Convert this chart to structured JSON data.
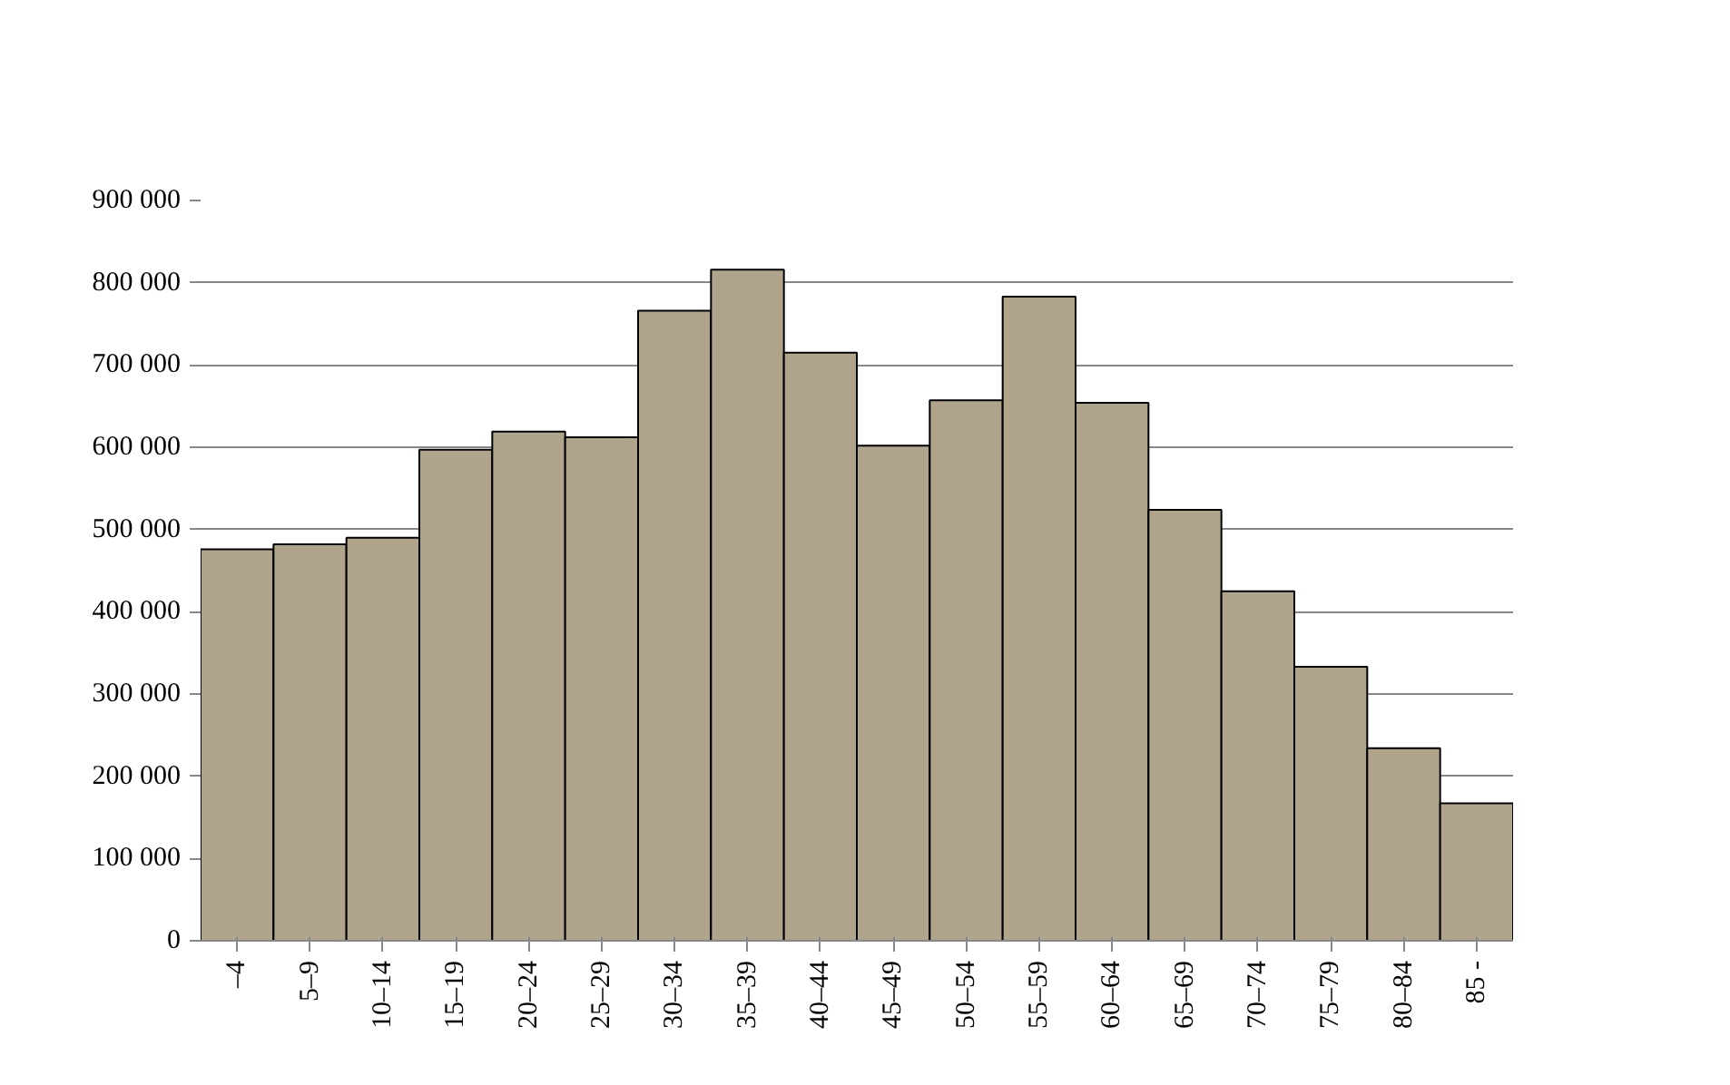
{
  "chart_data": {
    "type": "bar",
    "categories": [
      "–4",
      "5–9",
      "10–14",
      "15–19",
      "20–24",
      "25–29",
      "30–34",
      "35–39",
      "40–44",
      "45–49",
      "50–54",
      "55–59",
      "60–64",
      "65–69",
      "70–74",
      "75–79",
      "80–84",
      "85 -"
    ],
    "values": [
      476000,
      482000,
      490000,
      597000,
      619000,
      612000,
      766000,
      816000,
      715000,
      602000,
      657000,
      783000,
      654000,
      524000,
      425000,
      333000,
      234000,
      167000
    ],
    "color": "#b0a48c",
    "ylim": [
      0,
      900000
    ],
    "yticks": [
      0,
      {
        "value": 100000,
        "label": "100 000"
      },
      {
        "value": 200000,
        "label": "200 000"
      },
      {
        "value": 300000,
        "label": "300 000"
      },
      {
        "value": 400000,
        "label": "400 000"
      },
      {
        "value": 500000,
        "label": "500 000"
      },
      {
        "value": 600000,
        "label": "600 000"
      },
      {
        "value": 700000,
        "label": "700 000"
      },
      {
        "value": 800000,
        "label": "800 000"
      },
      {
        "value": 900000,
        "label": "900 000"
      }
    ],
    "grid": "y"
  }
}
